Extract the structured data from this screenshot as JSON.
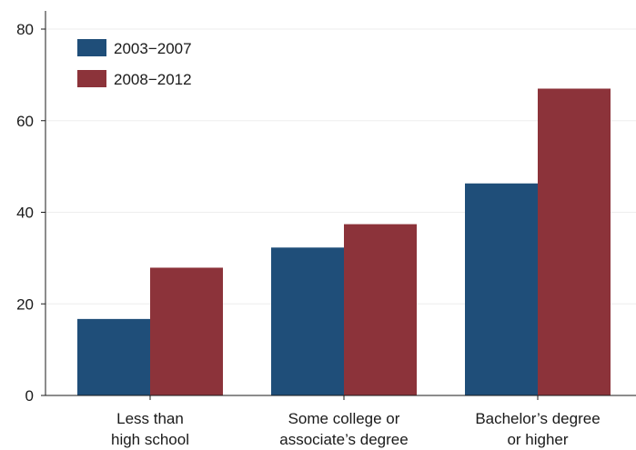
{
  "chart_data": {
    "type": "bar",
    "categories": [
      [
        "Less than",
        "high school"
      ],
      [
        "Some college or",
        "associate’s degree"
      ],
      [
        "Bachelor’s degree",
        "or higher"
      ]
    ],
    "series": [
      {
        "name": "2003−2007",
        "color": "#1f4e79",
        "values": [
          16.7,
          32.3,
          46.3
        ]
      },
      {
        "name": "2008−2012",
        "color": "#8c333a",
        "values": [
          27.9,
          37.4,
          67.0
        ]
      }
    ],
    "y_ticks": [
      "0",
      "20",
      "40",
      "60",
      "80"
    ],
    "ylim": [
      0,
      80
    ],
    "grid": true,
    "legend_position": "top-left"
  }
}
